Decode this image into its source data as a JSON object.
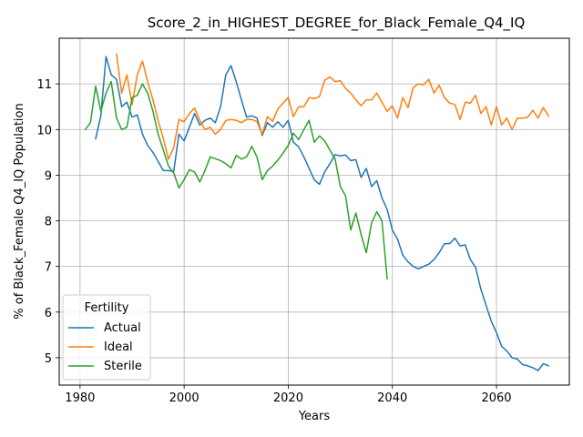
{
  "chart_data": {
    "type": "line",
    "title": "Score_2_in_HIGHEST_DEGREE_for_Black_Female_Q4_IQ",
    "xlabel": "Years",
    "ylabel": "% of Black_Female Q4_IQ Population",
    "xlim": [
      1976,
      2074
    ],
    "ylim": [
      4.4,
      12.0
    ],
    "xticks": [
      1980,
      2000,
      2020,
      2040,
      2060
    ],
    "yticks": [
      5,
      6,
      7,
      8,
      9,
      10,
      11
    ],
    "grid": true,
    "legend": {
      "title": "Fertility",
      "placement": "lower-left"
    },
    "series": [
      {
        "name": "Actual",
        "color": "#1f77b4",
        "x": [
          1983,
          1984,
          1985,
          1986,
          1987,
          1988,
          1989,
          1990,
          1991,
          1992,
          1993,
          1994,
          1995,
          1996,
          1997,
          1998,
          1999,
          2000,
          2001,
          2002,
          2003,
          2004,
          2005,
          2006,
          2007,
          2008,
          2009,
          2010,
          2011,
          2012,
          2013,
          2014,
          2015,
          2016,
          2017,
          2018,
          2019,
          2020,
          2021,
          2022,
          2023,
          2024,
          2025,
          2026,
          2027,
          2028,
          2029,
          2030,
          2031,
          2032,
          2033,
          2034,
          2035,
          2036,
          2037,
          2038,
          2039,
          2040,
          2041,
          2042,
          2043,
          2044,
          2045,
          2046,
          2047,
          2048,
          2049,
          2050,
          2051,
          2052,
          2053,
          2054,
          2055,
          2056,
          2057,
          2058,
          2059,
          2060,
          2061,
          2062,
          2063,
          2064,
          2065,
          2066,
          2067,
          2068,
          2069,
          2070
        ],
        "y": [
          9.8,
          10.3,
          11.6,
          11.2,
          11.1,
          10.5,
          10.6,
          10.27,
          10.32,
          9.9,
          9.65,
          9.5,
          9.3,
          9.1,
          9.1,
          9.08,
          9.9,
          9.75,
          10.05,
          10.35,
          10.1,
          10.2,
          10.25,
          10.15,
          10.5,
          11.2,
          11.4,
          11.05,
          10.65,
          10.27,
          10.3,
          10.25,
          9.87,
          10.15,
          10.05,
          10.17,
          10.05,
          10.2,
          9.72,
          9.62,
          9.4,
          9.15,
          8.9,
          8.8,
          9.07,
          9.25,
          9.45,
          9.42,
          9.44,
          9.32,
          9.34,
          8.95,
          9.15,
          8.75,
          8.88,
          8.5,
          8.25,
          7.8,
          7.6,
          7.25,
          7.1,
          7.0,
          6.95,
          7.0,
          7.05,
          7.15,
          7.3,
          7.5,
          7.5,
          7.62,
          7.45,
          7.47,
          7.15,
          6.98,
          6.5,
          6.15,
          5.8,
          5.55,
          5.25,
          5.15,
          5.0,
          4.97,
          4.85,
          4.82,
          4.78,
          4.72,
          4.87,
          4.82
        ]
      },
      {
        "name": "Ideal",
        "color": "#ff7f0e",
        "x": [
          1987,
          1988,
          1989,
          1990,
          1991,
          1992,
          1993,
          1994,
          1995,
          1996,
          1997,
          1998,
          1999,
          2000,
          2001,
          2002,
          2003,
          2004,
          2005,
          2006,
          2007,
          2008,
          2009,
          2010,
          2011,
          2012,
          2013,
          2014,
          2015,
          2016,
          2017,
          2018,
          2019,
          2020,
          2021,
          2022,
          2023,
          2024,
          2025,
          2026,
          2027,
          2028,
          2029,
          2030,
          2031,
          2032,
          2033,
          2034,
          2035,
          2036,
          2037,
          2038,
          2039,
          2040,
          2041,
          2042,
          2043,
          2044,
          2045,
          2046,
          2047,
          2048,
          2049,
          2050,
          2051,
          2052,
          2053,
          2054,
          2055,
          2056,
          2057,
          2058,
          2059,
          2060,
          2061,
          2062,
          2063,
          2064,
          2065,
          2066,
          2067,
          2068,
          2069,
          2070
        ],
        "y": [
          11.65,
          10.8,
          11.2,
          10.55,
          11.2,
          11.5,
          11.05,
          10.65,
          10.2,
          9.8,
          9.35,
          9.6,
          10.22,
          10.17,
          10.35,
          10.47,
          10.2,
          10.0,
          10.05,
          9.9,
          10.0,
          10.2,
          10.22,
          10.2,
          10.15,
          10.22,
          10.22,
          10.17,
          9.9,
          10.28,
          10.18,
          10.45,
          10.58,
          10.7,
          10.28,
          10.5,
          10.5,
          10.7,
          10.68,
          10.72,
          11.08,
          11.15,
          11.05,
          11.07,
          10.9,
          10.8,
          10.65,
          10.52,
          10.65,
          10.65,
          10.8,
          10.6,
          10.4,
          10.52,
          10.25,
          10.7,
          10.48,
          10.92,
          11.0,
          10.98,
          11.1,
          10.8,
          10.97,
          10.7,
          10.58,
          10.55,
          10.22,
          10.6,
          10.58,
          10.75,
          10.35,
          10.5,
          10.1,
          10.5,
          10.1,
          10.25,
          10.0,
          10.25,
          10.25,
          10.27,
          10.42,
          10.25,
          10.48,
          10.3
        ]
      },
      {
        "name": "Sterile",
        "color": "#2ca02c",
        "x": [
          1981,
          1982,
          1983,
          1984,
          1985,
          1986,
          1987,
          1988,
          1989,
          1990,
          1991,
          1992,
          1993,
          1994,
          1995,
          1996,
          1997,
          1998,
          1999,
          2000,
          2001,
          2002,
          2003,
          2004,
          2005,
          2006,
          2007,
          2008,
          2009,
          2010,
          2011,
          2012,
          2013,
          2014,
          2015,
          2016,
          2017,
          2018,
          2019,
          2020,
          2021,
          2022,
          2023,
          2024,
          2025,
          2026,
          2027,
          2028,
          2029,
          2030,
          2031,
          2032,
          2033,
          2034,
          2035,
          2036,
          2037,
          2038,
          2039
        ],
        "y": [
          10.0,
          10.15,
          10.95,
          10.4,
          10.8,
          11.05,
          10.25,
          10.0,
          10.05,
          10.7,
          10.75,
          11.0,
          10.8,
          10.4,
          9.9,
          9.55,
          9.2,
          9.05,
          8.72,
          8.9,
          9.12,
          9.07,
          8.85,
          9.1,
          9.4,
          9.36,
          9.32,
          9.25,
          9.16,
          9.43,
          9.35,
          9.4,
          9.63,
          9.4,
          8.9,
          9.1,
          9.2,
          9.33,
          9.48,
          9.65,
          9.92,
          9.78,
          10.0,
          10.2,
          9.72,
          9.86,
          9.75,
          9.55,
          9.35,
          8.75,
          8.55,
          7.8,
          8.17,
          7.7,
          7.3,
          7.95,
          8.2,
          8.0,
          6.73
        ]
      }
    ]
  }
}
